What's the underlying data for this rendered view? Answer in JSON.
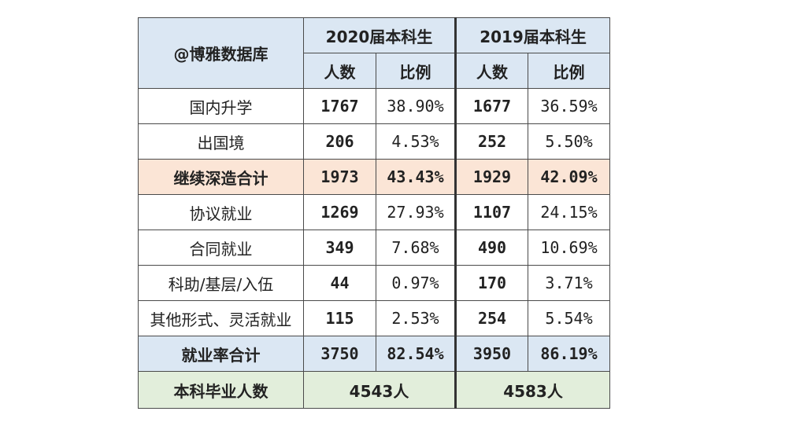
{
  "table": {
    "org_label": "@博雅数据库",
    "groups": [
      "2020届本科生",
      "2019届本科生"
    ],
    "sub_headers": [
      "人数",
      "比例",
      "人数",
      "比例"
    ],
    "rows": [
      {
        "label": "国内升学",
        "v2020": "1767",
        "p2020": "38.90%",
        "v2019": "1677",
        "p2019": "36.59%"
      },
      {
        "label": "出国境",
        "v2020": "206",
        "p2020": "4.53%",
        "v2019": "252",
        "p2019": "5.50%"
      },
      {
        "label": "继续深造合计",
        "v2020": "1973",
        "p2020": "43.43%",
        "v2019": "1929",
        "p2019": "42.09%"
      },
      {
        "label": "协议就业",
        "v2020": "1269",
        "p2020": "27.93%",
        "v2019": "1107",
        "p2019": "24.15%"
      },
      {
        "label": "合同就业",
        "v2020": "349",
        "p2020": "7.68%",
        "v2019": "490",
        "p2019": "10.69%"
      },
      {
        "label": "科助/基层/入伍",
        "v2020": "44",
        "p2020": "0.97%",
        "v2019": "170",
        "p2019": "3.71%"
      },
      {
        "label": "其他形式、灵活就业",
        "v2020": "115",
        "p2020": "2.53%",
        "v2019": "254",
        "p2019": "5.54%"
      },
      {
        "label": "就业率合计",
        "v2020": "3750",
        "p2020": "82.54%",
        "v2019": "3950",
        "p2019": "86.19%"
      }
    ],
    "footer": {
      "label": "本科毕业人数",
      "total2020": "4543人",
      "total2019": "4583人"
    }
  }
}
